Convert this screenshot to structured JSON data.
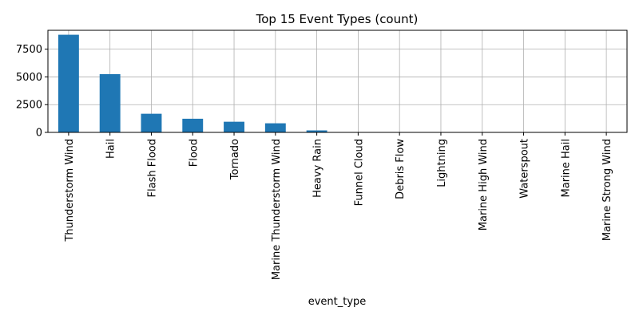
{
  "chart_data": {
    "type": "bar",
    "title": "Top 15 Event Types (count)",
    "xlabel": "event_type",
    "ylabel": "",
    "categories": [
      "Thunderstorm Wind",
      "Hail",
      "Flash Flood",
      "Flood",
      "Tornado",
      "Marine Thunderstorm Wind",
      "Heavy Rain",
      "Funnel Cloud",
      "Debris Flow",
      "Lightning",
      "Marine High Wind",
      "Waterspout",
      "Marine Hail",
      "Marine Strong Wind"
    ],
    "values": [
      8800,
      5250,
      1680,
      1230,
      960,
      820,
      180,
      15,
      10,
      8,
      6,
      5,
      4,
      3
    ],
    "ylim": [
      0,
      9200
    ],
    "yticks": [
      0,
      2500,
      5000,
      7500
    ],
    "grid": true,
    "bar_color": "#1f77b4"
  }
}
